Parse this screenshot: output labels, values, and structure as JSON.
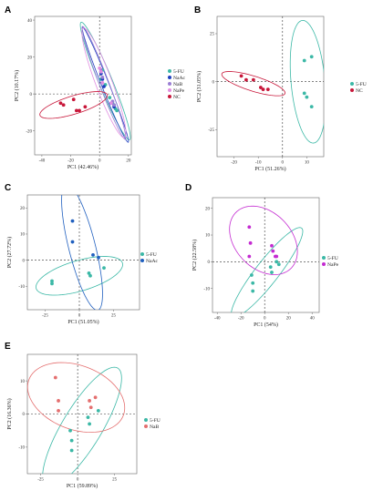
{
  "chart_data": [
    {
      "type": "scatter",
      "panel": "A",
      "xlabel": "PC1 (42.46%)",
      "ylabel": "PC2 (10.17%)",
      "xlim": [
        -45,
        22
      ],
      "ylim": [
        -33,
        42
      ],
      "xticks": [
        -40,
        -20,
        0,
        20
      ],
      "yticks": [
        -20,
        0,
        20,
        40
      ],
      "series": [
        {
          "name": "5-FU",
          "color": "#3bb8a6",
          "x": [
            2,
            1,
            4,
            7,
            9,
            10,
            11,
            12
          ],
          "y": [
            13,
            8,
            5,
            -2,
            -5,
            -6,
            -8,
            -9
          ],
          "ellipse": {
            "cx": 4,
            "cy": 7,
            "rx": 36,
            "ry": 4.5,
            "angle": -62
          }
        },
        {
          "name": "NaAc",
          "color": "#1f3fbf",
          "x": [
            1,
            2,
            3,
            8,
            10
          ],
          "y": [
            11,
            8,
            4,
            -5,
            -7
          ],
          "ellipse": {
            "cx": 4,
            "cy": 5,
            "rx": 35,
            "ry": 2.5,
            "angle": -63
          }
        },
        {
          "name": "NaB",
          "color": "#9b7fd4",
          "x": [
            1,
            2,
            9,
            10
          ],
          "y": [
            13,
            9,
            -4,
            -6
          ],
          "ellipse": {
            "cx": 3,
            "cy": 6,
            "rx": 34,
            "ry": 3.2,
            "angle": -64
          }
        },
        {
          "name": "NaPe",
          "color": "#e18de0",
          "x": [
            0,
            1,
            2,
            8
          ],
          "y": [
            14,
            12,
            6,
            -5
          ],
          "ellipse": {
            "cx": 3,
            "cy": 6,
            "rx": 33,
            "ry": 5.5,
            "angle": -64
          }
        },
        {
          "name": "NC",
          "color": "#c8173a",
          "x": [
            -27,
            -25,
            -18,
            -16,
            -14,
            -10
          ],
          "y": [
            -5,
            -6,
            -3,
            -9,
            -9,
            -7
          ],
          "ellipse": {
            "cx": -18,
            "cy": -6,
            "rx": 24,
            "ry": 5,
            "angle": 13
          }
        }
      ]
    },
    {
      "type": "scatter",
      "panel": "B",
      "xlabel": "PC1 (51.26%)",
      "ylabel": "PC2 (31.05%)",
      "xlim": [
        -27,
        17
      ],
      "ylim": [
        -39,
        34
      ],
      "xticks": [
        -20,
        -10,
        0,
        10
      ],
      "yticks": [
        -25,
        0,
        25
      ],
      "series": [
        {
          "name": "5-FU",
          "color": "#3bb8a6",
          "x": [
            9,
            12,
            9,
            10,
            12
          ],
          "y": [
            11,
            13,
            -6,
            -8,
            -13
          ],
          "ellipse": {
            "cx": 10.5,
            "cy": 0,
            "rx": 7,
            "ry": 32,
            "angle": 4
          }
        },
        {
          "name": "NC",
          "color": "#c8173a",
          "x": [
            -17,
            -15,
            -12,
            -9,
            -8,
            -6
          ],
          "y": [
            3,
            1,
            1,
            -3,
            -4,
            -4
          ],
          "ellipse": {
            "cx": -12,
            "cy": -1,
            "rx": 14,
            "ry": 3.8,
            "angle": -22
          }
        }
      ]
    },
    {
      "type": "scatter",
      "panel": "C",
      "xlabel": "PC1 (51.05%)",
      "ylabel": "PC2 (27.72%)",
      "xlim": [
        -38,
        44
      ],
      "ylim": [
        -19,
        25
      ],
      "xticks": [
        -25,
        0,
        25
      ],
      "yticks": [
        -10,
        0,
        10,
        20
      ],
      "series": [
        {
          "name": "5-FU",
          "color": "#3bb8a6",
          "x": [
            -20,
            -20,
            7,
            8,
            18
          ],
          "y": [
            -8,
            -9,
            -5,
            -6,
            -3
          ],
          "ellipse": {
            "cx": 0,
            "cy": -6,
            "rx": 32,
            "ry": 6,
            "angle": 8
          }
        },
        {
          "name": "NaAc",
          "color": "#1f5fbf",
          "x": [
            -5,
            -5,
            10,
            14
          ],
          "y": [
            15,
            7,
            2,
            1
          ],
          "ellipse": {
            "cx": 2,
            "cy": 5,
            "rx": 27,
            "ry": 9,
            "angle": -62
          }
        }
      ]
    },
    {
      "type": "scatter",
      "panel": "D",
      "xlabel": "PC1 (54%)",
      "ylabel": "PC2 (22.58%)",
      "xlim": [
        -44,
        46
      ],
      "ylim": [
        -19,
        24
      ],
      "xticks": [
        -40,
        -20,
        0,
        20,
        40
      ],
      "yticks": [
        -10,
        0,
        10,
        20
      ],
      "series": [
        {
          "name": "5-FU",
          "color": "#3bb8a6",
          "x": [
            -11,
            -10,
            -10,
            5,
            6,
            10,
            12
          ],
          "y": [
            -5,
            -8,
            -11,
            -2,
            -4,
            0,
            -1
          ],
          "ellipse": {
            "cx": 2,
            "cy": -4,
            "rx": 34,
            "ry": 6,
            "angle": 28
          }
        },
        {
          "name": "NaPe",
          "color": "#c42bd1",
          "x": [
            -13,
            -12,
            -13,
            6,
            7,
            9,
            10
          ],
          "y": [
            13,
            7,
            2,
            6,
            4,
            2,
            2
          ],
          "ellipse": {
            "cx": -1,
            "cy": 8,
            "rx": 29,
            "ry": 12,
            "angle": -10
          }
        }
      ]
    },
    {
      "type": "scatter",
      "panel": "E",
      "xlabel": "PC1 (59.89%)",
      "ylabel": "PC2 (16.36%)",
      "xlim": [
        -34,
        40
      ],
      "ylim": [
        -18,
        18
      ],
      "xticks": [
        -25,
        0,
        25
      ],
      "yticks": [
        -10,
        0,
        10
      ],
      "series": [
        {
          "name": "5-FU",
          "color": "#3bb8a6",
          "x": [
            -5,
            -4,
            -4,
            7,
            8,
            14
          ],
          "y": [
            -5,
            -8,
            -11,
            -1,
            -3,
            1
          ],
          "ellipse": {
            "cx": 3,
            "cy": -4,
            "rx": 31,
            "ry": 9,
            "angle": 32
          }
        },
        {
          "name": "NaB",
          "color": "#e46f6f",
          "x": [
            -15,
            -13,
            -13,
            8,
            12,
            9
          ],
          "y": [
            11,
            4,
            1,
            4,
            5,
            2
          ],
          "ellipse": {
            "cx": -1,
            "cy": 5,
            "rx": 33,
            "ry": 10,
            "angle": -6
          }
        }
      ]
    }
  ]
}
